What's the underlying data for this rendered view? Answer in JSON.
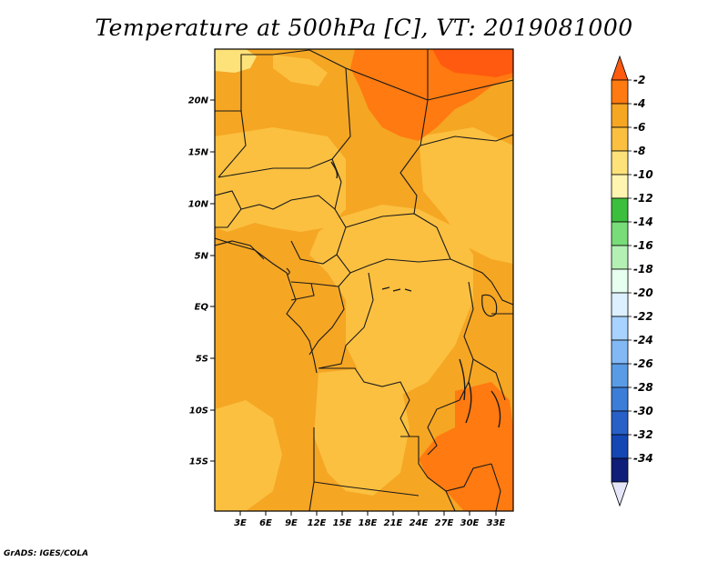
{
  "title": "Temperature at 500hPa [C], VT: 2019081000",
  "footer": "GrADS: IGES/COLA",
  "map": {
    "lat_labels": [
      "20N",
      "15N",
      "10N",
      "5N",
      "EQ",
      "5S",
      "10S",
      "15S"
    ],
    "lon_labels": [
      "3E",
      "6E",
      "9E",
      "12E",
      "15E",
      "18E",
      "21E",
      "24E",
      "27E",
      "30E",
      "33E"
    ],
    "base_color": "#f5a623"
  },
  "colorbar": {
    "labels": [
      "-2",
      "-4",
      "-6",
      "-8",
      "-10",
      "-12",
      "-14",
      "-16",
      "-18",
      "-20",
      "-22",
      "-24",
      "-26",
      "-28",
      "-30",
      "-32",
      "-34"
    ],
    "colors": [
      "#ff5a0f",
      "#ff7a10",
      "#f5a623",
      "#fbc040",
      "#fde27a",
      "#fff4b0",
      "#3cbf3c",
      "#78dc78",
      "#b4f0b4",
      "#e6fff0",
      "#ddf0ff",
      "#a8d2ff",
      "#82b9f5",
      "#5a9be6",
      "#3c7dd7",
      "#2860c8",
      "#1446b4",
      "#0f1e78",
      "#e6e6fa"
    ]
  }
}
